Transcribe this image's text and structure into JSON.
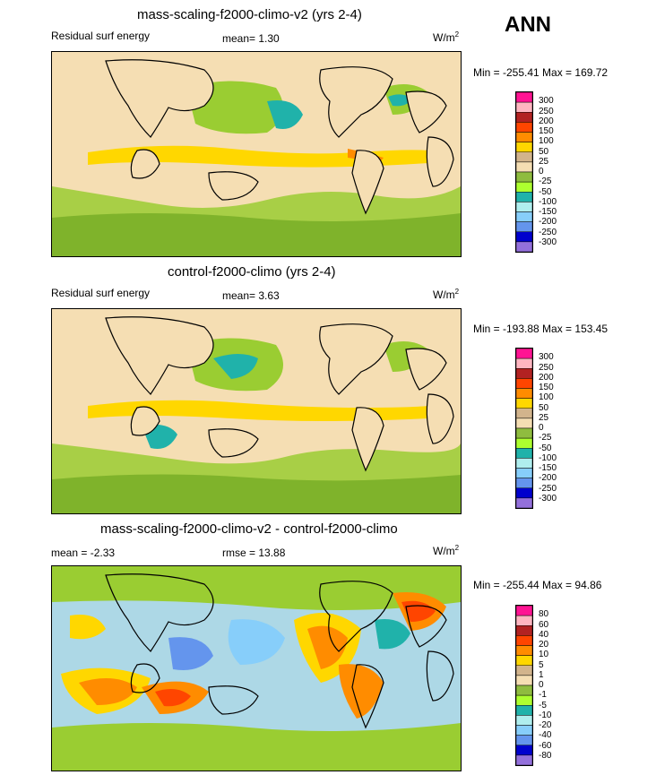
{
  "season": "ANN",
  "colors": {
    "cb13": [
      "#ff1493",
      "#ffb6c1",
      "#b22222",
      "#ff4500",
      "#ff8c00",
      "#ffd700",
      "#d2b48c",
      "#f5deb3",
      "#8fbc3f",
      "#adff2f",
      "#20b2aa",
      "#afeeee",
      "#87cefa",
      "#6495ed",
      "#0000cd",
      "#9370db"
    ],
    "ocean_base": "#f5deb3",
    "diff_base": "#add8e6"
  },
  "panels": [
    {
      "title": "mass-scaling-f2000-climo-v2 (yrs 2-4)",
      "left_label": "Residual surf energy",
      "mean_text": "mean=   1.30",
      "units": "W/m",
      "units_sup": "2",
      "minmax": "Min = -255.41 Max = 169.72",
      "levels": [
        "300",
        "250",
        "200",
        "150",
        "100",
        "50",
        "25",
        "0",
        "-25",
        "-50",
        "-100",
        "-150",
        "-200",
        "-250",
        "-300"
      ]
    },
    {
      "title": "control-f2000-climo (yrs 2-4)",
      "left_label": "Residual surf energy",
      "mean_text": "mean=   3.63",
      "units": "W/m",
      "units_sup": "2",
      "minmax": "Min = -193.88 Max = 153.45",
      "levels": [
        "300",
        "250",
        "200",
        "150",
        "100",
        "50",
        "25",
        "0",
        "-25",
        "-50",
        "-100",
        "-150",
        "-200",
        "-250",
        "-300"
      ]
    },
    {
      "title": "mass-scaling-f2000-climo-v2 - control-f2000-climo",
      "left_label": "mean =  -2.33",
      "mean_text": "rmse =  13.88",
      "units": "W/m",
      "units_sup": "2",
      "minmax": "Min = -255.44 Max =  94.86",
      "levels": [
        "80",
        "60",
        "40",
        "20",
        "10",
        "5",
        "1",
        "0",
        "-1",
        "-5",
        "-10",
        "-20",
        "-40",
        "-60",
        "-80"
      ]
    }
  ]
}
